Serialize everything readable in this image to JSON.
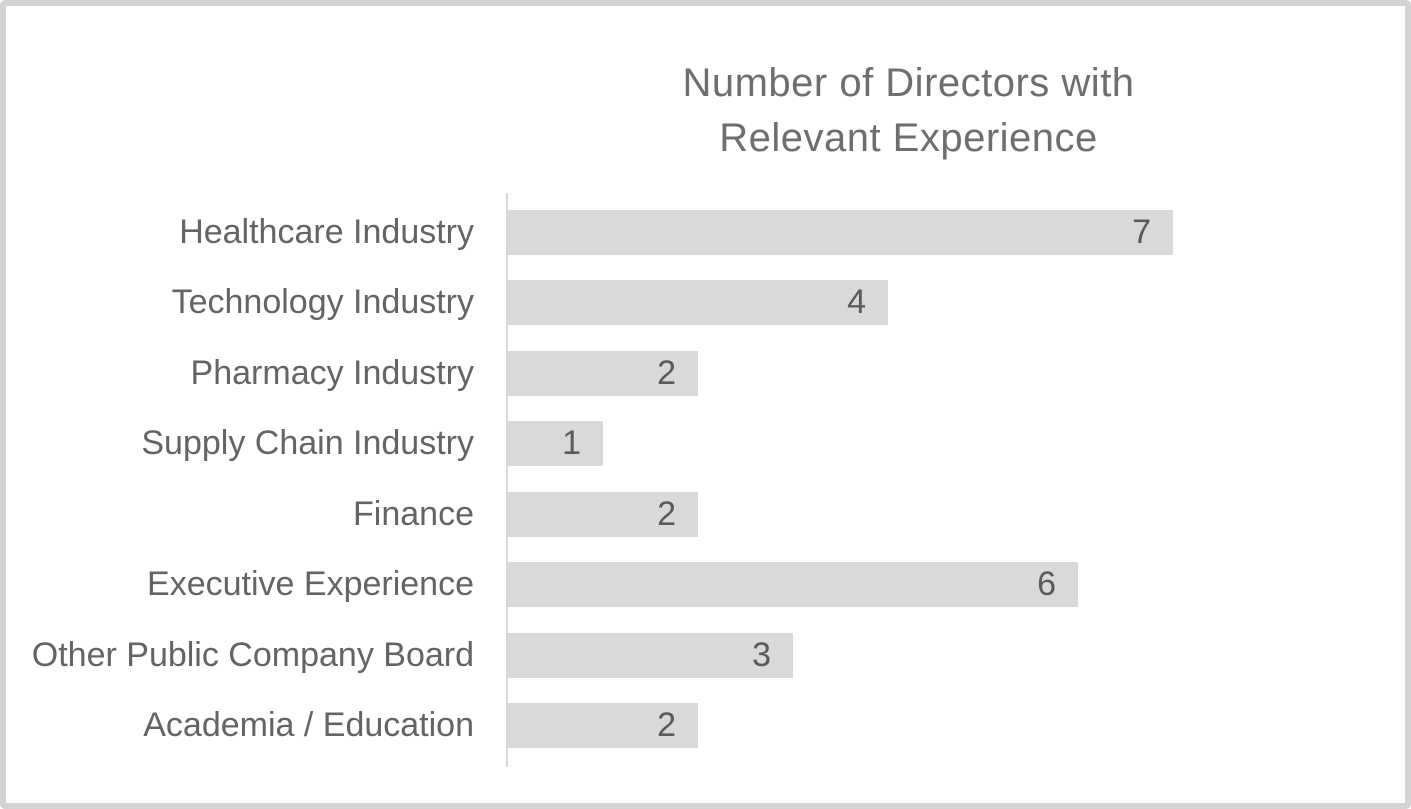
{
  "chart": {
    "title_line1": "Number of Directors with",
    "title_line2": "Relevant Experience"
  },
  "chart_data": {
    "type": "bar",
    "orientation": "horizontal",
    "title": "Number of Directors with Relevant Experience",
    "categories": [
      "Healthcare Industry",
      "Technology Industry",
      "Pharmacy Industry",
      "Supply Chain Industry",
      "Finance",
      "Executive Experience",
      "Other Public Company Board",
      "Academia / Education"
    ],
    "values": [
      7,
      4,
      2,
      1,
      2,
      6,
      3,
      2
    ],
    "xlabel": "",
    "ylabel": "",
    "xlim": [
      0,
      8
    ],
    "data_labels": true,
    "grid": false,
    "legend": false,
    "bar_color": "#d9d9d9",
    "axis_line_color": "#d9d9d9",
    "label_color": "#646464",
    "value_label_color": "#5a5a5a",
    "title_color": "#6e6e6e",
    "frame_border_color": "#d3d3d3",
    "background_color": "#ffffff"
  }
}
